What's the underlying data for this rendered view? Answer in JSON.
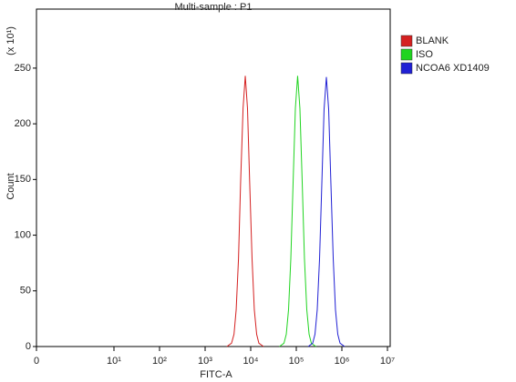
{
  "chart_data": {
    "type": "line",
    "title": "Multi-sample : P1",
    "x_label": "FITC-A",
    "y_label": "Count",
    "y_scale_label": "(x 10¹)",
    "xscale": "log",
    "xlim": [
      0,
      10000000
    ],
    "ylim": [
      0,
      303
    ],
    "xticks": [
      0,
      {
        "value": 10,
        "label": "10¹"
      },
      {
        "value": 100,
        "label": "10²"
      },
      {
        "value": 1000,
        "label": "10³"
      },
      {
        "value": 10000,
        "label": "10⁴"
      },
      {
        "value": 100000,
        "label": "10⁵"
      },
      {
        "value": 1000000,
        "label": "10⁶"
      },
      {
        "value": 10000000,
        "label": "10⁷"
      }
    ],
    "yticks": [
      0,
      50,
      100,
      150,
      200,
      250
    ],
    "legend": "top-right",
    "series": [
      {
        "name": "BLANK",
        "color": "#d42020",
        "x": [
          3000,
          3800,
          4300,
          4800,
          5400,
          6000,
          6800,
          7600,
          8500,
          9500,
          10700,
          12000,
          13500,
          15100,
          19100
        ],
        "values": [
          0,
          3,
          11,
          33,
          79,
          147,
          214,
          243,
          214,
          147,
          79,
          33,
          11,
          3,
          0
        ]
      },
      {
        "name": "ISO",
        "color": "#20d420",
        "x": [
          42700,
          53700,
          60300,
          67600,
          75900,
          85100,
          95500,
          107000,
          120000,
          135000,
          151000,
          170000,
          191000,
          214000,
          269000
        ],
        "values": [
          0,
          3,
          11,
          33,
          79,
          147,
          214,
          243,
          214,
          147,
          79,
          33,
          11,
          3,
          0
        ]
      },
      {
        "name": "NCOA6 XD1409",
        "color": "#2020d4",
        "x": [
          182000,
          229000,
          257000,
          288000,
          324000,
          363000,
          407000,
          457000,
          513000,
          575000,
          646000,
          724000,
          813000,
          912000,
          1148000
        ],
        "values": [
          0,
          3,
          11,
          33,
          79,
          146,
          213,
          242,
          213,
          146,
          79,
          33,
          11,
          3,
          0
        ]
      }
    ]
  }
}
